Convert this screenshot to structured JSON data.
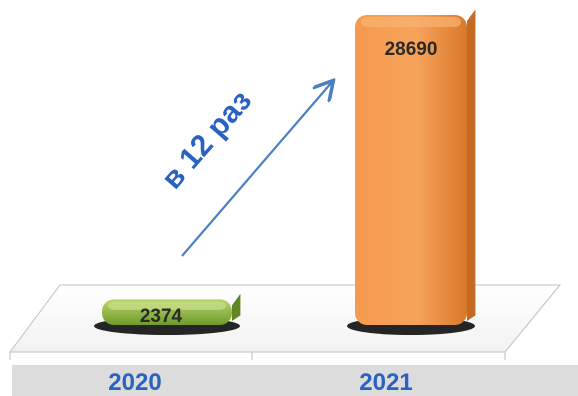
{
  "chart_data": {
    "type": "bar",
    "categories": [
      "2020",
      "2021"
    ],
    "values": [
      2374,
      28690
    ],
    "ylim": [
      0,
      28690
    ],
    "grid": false,
    "legend": "none",
    "annotation": "в 12 раз",
    "data_labels": [
      "2374",
      "28690"
    ]
  },
  "colors": {
    "bar_2020": "#8db13e",
    "bar_2021": "#f18c3a",
    "arrow": "#4a7fc4",
    "annotation_text": "#2a62c4",
    "label_text": "#2a2a2a",
    "axis_band": "#dcdcdc"
  }
}
